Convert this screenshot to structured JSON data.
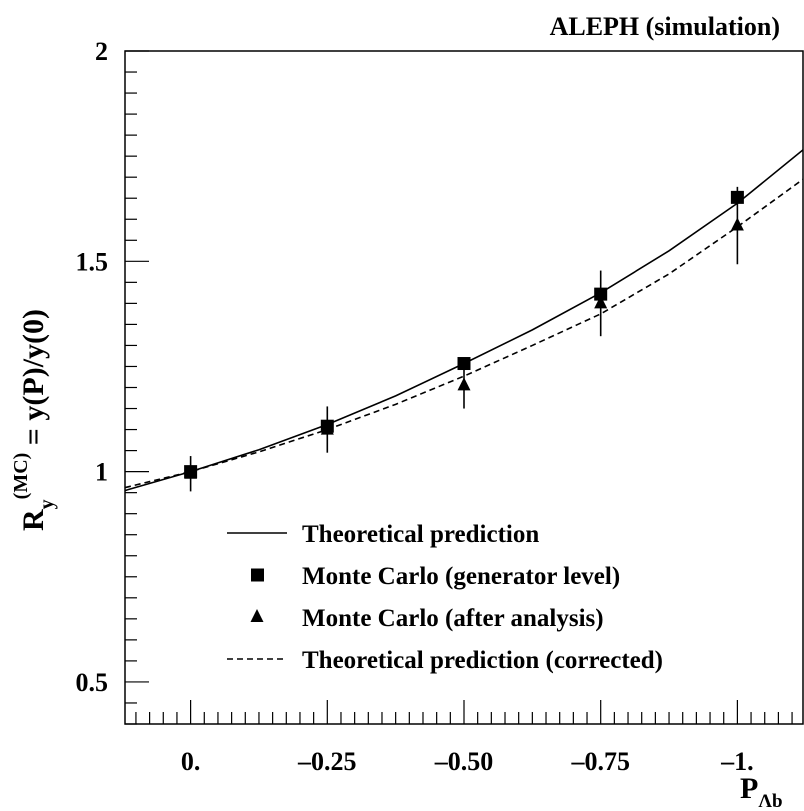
{
  "chart_data": {
    "type": "line",
    "title": "ALEPH (simulation)",
    "xlabel": "P",
    "xlabel_sub": "Λb",
    "ylabel_main": "R",
    "ylabel_sub": "y",
    "ylabel_sup": "(MC)",
    "ylabel_rest": " = y(P)/y(0)",
    "xlim": [
      0.12,
      -1.12
    ],
    "ylim": [
      0.4,
      2.0
    ],
    "x_ticks": [
      0,
      -0.25,
      -0.5,
      -0.75,
      -1.0
    ],
    "x_tick_labels": [
      "0.",
      "–0.25",
      "–0.50",
      "–0.75",
      "–1."
    ],
    "y_ticks": [
      0.5,
      1.0,
      1.5,
      2.0
    ],
    "y_tick_labels": [
      "0.5",
      "1",
      "1.5",
      "2"
    ],
    "series": [
      {
        "name": "Theoretical prediction",
        "style": "solid",
        "x": [
          0.12,
          0.0,
          -0.125,
          -0.25,
          -0.375,
          -0.5,
          -0.625,
          -0.75,
          -0.875,
          -1.0,
          -1.12
        ],
        "y": [
          0.955,
          1.0,
          1.052,
          1.112,
          1.18,
          1.257,
          1.337,
          1.425,
          1.525,
          1.638,
          1.765
        ]
      },
      {
        "name": "Monte Carlo (generator level)",
        "style": "square",
        "x": [
          0.0,
          -0.25,
          -0.5,
          -0.75,
          -1.0
        ],
        "y": [
          1.0,
          1.108,
          1.257,
          1.422,
          1.652
        ],
        "err": [
          0.0,
          0.0,
          0.0,
          0.0,
          0.0
        ]
      },
      {
        "name": "Monte Carlo (after analysis)",
        "style": "triangle",
        "x": [
          0.0,
          -0.25,
          -0.5,
          -0.75,
          -1.0
        ],
        "y": [
          0.995,
          1.1,
          1.205,
          1.4,
          1.585
        ],
        "err": [
          0.042,
          0.055,
          0.055,
          0.078,
          0.092
        ]
      },
      {
        "name": "Theoretical prediction (corrected)",
        "style": "dashed",
        "x": [
          0.12,
          0.0,
          -0.125,
          -0.25,
          -0.375,
          -0.5,
          -0.625,
          -0.75,
          -0.875,
          -1.0,
          -1.12
        ],
        "y": [
          0.962,
          1.0,
          1.047,
          1.1,
          1.16,
          1.227,
          1.3,
          1.375,
          1.47,
          1.582,
          1.695
        ]
      }
    ],
    "legend_position": "lower-center",
    "grid": false
  }
}
